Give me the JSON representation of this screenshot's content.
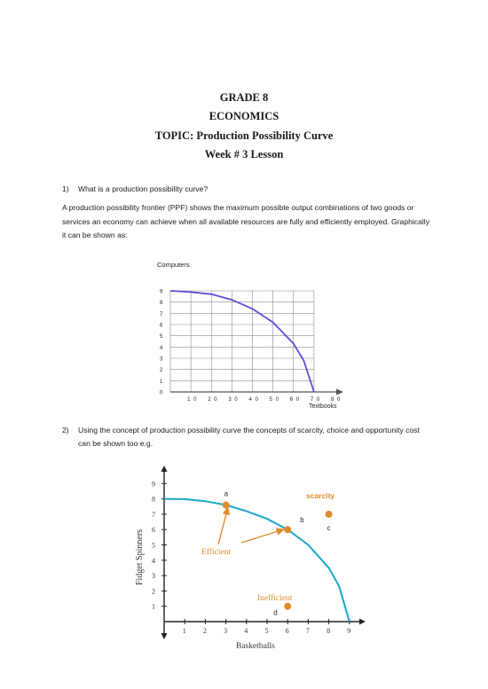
{
  "header": {
    "grade": "GRADE 8",
    "subject": "ECONOMICS",
    "topic": "TOPIC: Production Possibility Curve",
    "week": "Week # 3 Lesson"
  },
  "question1": {
    "number": "1)",
    "text": "What is a production possibility curve?"
  },
  "paragraph": "A production possibility frontier (PPF) shows the maximum possible output combinations of two goods or services an economy can achieve when all available resources are fully and efficiently employed. Graphically it can be shown as:",
  "question2": {
    "number": "2)",
    "text": "Using the concept of production possibility curve the concepts of scarcity, choice and opportunity cost can be shown too e.g."
  },
  "chart_data": [
    {
      "type": "line",
      "ylabel": "Computers",
      "xlabel": "Textbooks",
      "x_ticks": [
        "10",
        "20",
        "30",
        "40",
        "50",
        "60",
        "70",
        "80"
      ],
      "y_ticks": [
        "0",
        "1",
        "2",
        "3",
        "4",
        "5",
        "6",
        "7",
        "8",
        "9"
      ],
      "xlim": [
        0,
        80
      ],
      "ylim": [
        0,
        9
      ],
      "grid": true,
      "series": [
        {
          "color": "#5b4fd6",
          "x": [
            0,
            10,
            20,
            30,
            40,
            50,
            60,
            65,
            70
          ],
          "y": [
            9,
            8.9,
            8.7,
            8.2,
            7.4,
            6.2,
            4.3,
            2.8,
            0
          ]
        }
      ]
    },
    {
      "type": "line",
      "ylabel": "Fidget Spinners",
      "xlabel": "Basketballs",
      "x_ticks": [
        "1",
        "2",
        "3",
        "4",
        "5",
        "6",
        "7",
        "8",
        "9"
      ],
      "y_ticks": [
        "1",
        "2",
        "3",
        "4",
        "5",
        "6",
        "7",
        "8",
        "9"
      ],
      "xlim": [
        0,
        9
      ],
      "ylim": [
        0,
        9
      ],
      "grid": false,
      "series": [
        {
          "color": "#1aa7c9",
          "x": [
            0,
            1,
            2,
            3,
            4,
            5,
            6,
            7,
            8,
            8.5,
            9
          ],
          "y": [
            8,
            7.98,
            7.85,
            7.6,
            7.2,
            6.7,
            6.0,
            5.0,
            3.5,
            2.3,
            0
          ]
        }
      ],
      "points": [
        {
          "label": "a",
          "x": 3,
          "y": 7.6
        },
        {
          "label": "b",
          "x": 6,
          "y": 6.0
        },
        {
          "label": "c",
          "x": 8,
          "y": 7.0
        },
        {
          "label": "d",
          "x": 6,
          "y": 1.0
        }
      ],
      "annotations": {
        "scarcity": "scarcity",
        "efficient": "Efficient",
        "inefficient": "Inefficient"
      },
      "colors": {
        "point": "#e08a2b",
        "curve": "#1aa7c9",
        "scarcity": "#e08a2b"
      }
    }
  ]
}
